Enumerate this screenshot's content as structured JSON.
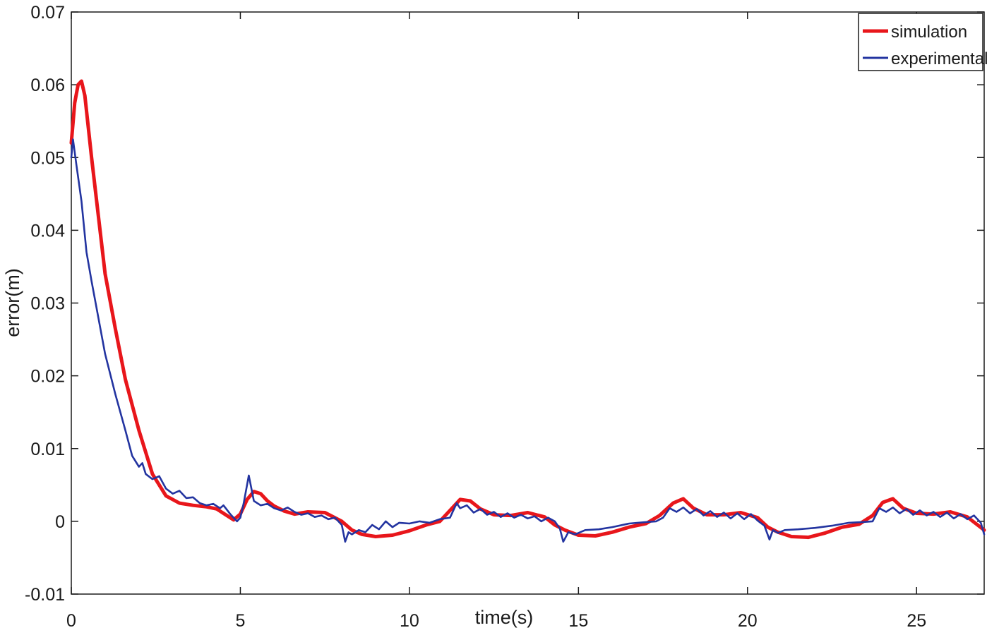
{
  "chart_data": {
    "type": "line",
    "title": "",
    "xlabel": "time(s)",
    "ylabel": "error(m)",
    "xlim": [
      0,
      27
    ],
    "ylim": [
      -0.01,
      0.07
    ],
    "x_ticks": [
      0,
      5,
      10,
      15,
      20,
      25
    ],
    "x_tick_labels": [
      "0",
      "5",
      "10",
      "15",
      "20",
      "25"
    ],
    "y_ticks": [
      -0.01,
      0,
      0.01,
      0.02,
      0.03,
      0.04,
      0.05,
      0.06,
      0.07
    ],
    "y_tick_labels": [
      "-0.01",
      "0",
      "0.01",
      "0.02",
      "0.03",
      "0.04",
      "0.05",
      "0.06",
      "0.07"
    ],
    "grid": false,
    "legend_position": "top-right",
    "series": [
      {
        "name": "simulation",
        "color": "#e8161b",
        "x": [
          0,
          0.1,
          0.2,
          0.3,
          0.4,
          0.6,
          0.8,
          1.0,
          1.3,
          1.6,
          2.0,
          2.4,
          2.8,
          3.2,
          3.6,
          4.0,
          4.3,
          4.6,
          4.8,
          5.0,
          5.2,
          5.4,
          5.6,
          5.8,
          6.0,
          6.3,
          6.6,
          7.0,
          7.5,
          8.0,
          8.3,
          8.6,
          9.0,
          9.5,
          10.0,
          10.5,
          10.9,
          11.2,
          11.5,
          11.8,
          12.1,
          12.5,
          13.0,
          13.5,
          14.0,
          14.3,
          14.6,
          15.0,
          15.5,
          16.0,
          16.5,
          17.0,
          17.4,
          17.8,
          18.1,
          18.4,
          18.8,
          19.3,
          19.8,
          20.3,
          20.6,
          20.9,
          21.3,
          21.8,
          22.3,
          22.8,
          23.3,
          23.7,
          24.0,
          24.3,
          24.6,
          25.0,
          25.5,
          26.0,
          26.5,
          27.0
        ],
        "values": [
          0.052,
          0.0575,
          0.06,
          0.0605,
          0.0585,
          0.05,
          0.042,
          0.034,
          0.0265,
          0.0195,
          0.0125,
          0.0065,
          0.0035,
          0.0025,
          0.0022,
          0.002,
          0.0017,
          0.0008,
          0.0002,
          0.001,
          0.003,
          0.0041,
          0.0038,
          0.0028,
          0.0021,
          0.0014,
          0.001,
          0.0013,
          0.0012,
          0.0,
          -0.0012,
          -0.0018,
          -0.0021,
          -0.0019,
          -0.0013,
          -0.0005,
          0.0,
          0.0015,
          0.003,
          0.0028,
          0.0017,
          0.0009,
          0.0008,
          0.0012,
          0.0006,
          -0.0005,
          -0.0012,
          -0.0019,
          -0.002,
          -0.0015,
          -0.0008,
          -0.0003,
          0.0008,
          0.0025,
          0.0031,
          0.0018,
          0.0009,
          0.0009,
          0.0012,
          0.0005,
          -0.0008,
          -0.0015,
          -0.0021,
          -0.0022,
          -0.0016,
          -0.0008,
          -0.0004,
          0.0008,
          0.0026,
          0.0031,
          0.0018,
          0.0011,
          0.001,
          0.0013,
          0.0006,
          -0.0012
        ]
      },
      {
        "name": "experimental",
        "color": "#2334a0",
        "x": [
          0,
          0.05,
          0.15,
          0.3,
          0.45,
          0.6,
          0.8,
          1.0,
          1.3,
          1.6,
          1.8,
          2.0,
          2.1,
          2.2,
          2.4,
          2.6,
          2.8,
          3.0,
          3.2,
          3.4,
          3.6,
          3.8,
          4.0,
          4.2,
          4.4,
          4.5,
          4.7,
          4.9,
          5.0,
          5.1,
          5.25,
          5.4,
          5.6,
          5.8,
          6.0,
          6.2,
          6.4,
          6.6,
          6.8,
          7.0,
          7.2,
          7.4,
          7.6,
          7.8,
          8.0,
          8.1,
          8.2,
          8.3,
          8.5,
          8.7,
          8.9,
          9.1,
          9.3,
          9.5,
          9.7,
          10.0,
          10.3,
          10.6,
          10.9,
          11.2,
          11.4,
          11.5,
          11.7,
          11.9,
          12.1,
          12.3,
          12.5,
          12.7,
          12.9,
          13.1,
          13.3,
          13.5,
          13.7,
          13.9,
          14.1,
          14.3,
          14.45,
          14.55,
          14.7,
          14.9,
          15.2,
          15.6,
          16.0,
          16.5,
          17.0,
          17.3,
          17.5,
          17.7,
          17.9,
          18.1,
          18.3,
          18.5,
          18.7,
          18.9,
          19.1,
          19.3,
          19.5,
          19.7,
          19.9,
          20.1,
          20.3,
          20.5,
          20.65,
          20.75,
          20.9,
          21.1,
          21.5,
          22.0,
          22.5,
          23.0,
          23.4,
          23.7,
          23.9,
          24.1,
          24.3,
          24.5,
          24.7,
          24.9,
          25.1,
          25.3,
          25.5,
          25.7,
          25.9,
          26.1,
          26.3,
          26.5,
          26.7,
          26.9,
          27.0
        ],
        "values": [
          0.05,
          0.0525,
          0.049,
          0.044,
          0.037,
          0.033,
          0.028,
          0.023,
          0.0175,
          0.0125,
          0.009,
          0.0075,
          0.008,
          0.0065,
          0.0058,
          0.0062,
          0.0045,
          0.0038,
          0.0042,
          0.0032,
          0.0033,
          0.0025,
          0.0022,
          0.0024,
          0.0018,
          0.0022,
          0.001,
          0.0,
          0.0005,
          0.0025,
          0.0063,
          0.0028,
          0.0022,
          0.0024,
          0.0018,
          0.0015,
          0.0019,
          0.0013,
          0.0009,
          0.0011,
          0.0006,
          0.0008,
          0.0003,
          0.0005,
          -0.0005,
          -0.0028,
          -0.0015,
          -0.0018,
          -0.0012,
          -0.0015,
          -0.0005,
          -0.0011,
          0.0,
          -0.0008,
          -0.0002,
          -0.0003,
          0.0,
          -0.0002,
          0.0003,
          0.0005,
          0.0025,
          0.0018,
          0.0022,
          0.0012,
          0.0017,
          0.0009,
          0.0013,
          0.0006,
          0.0011,
          0.0005,
          0.0009,
          0.0004,
          0.0007,
          0.0,
          0.0005,
          0.0,
          -0.001,
          -0.0028,
          -0.0015,
          -0.0018,
          -0.0012,
          -0.0011,
          -0.0008,
          -0.0003,
          -0.0001,
          0.0,
          0.0005,
          0.0018,
          0.0013,
          0.0019,
          0.0011,
          0.0017,
          0.0008,
          0.0014,
          0.0006,
          0.0012,
          0.0004,
          0.0011,
          0.0003,
          0.001,
          0.0001,
          -0.0006,
          -0.0025,
          -0.0012,
          -0.0016,
          -0.0012,
          -0.0011,
          -0.0009,
          -0.0006,
          -0.0002,
          -0.0001,
          0.0,
          0.0018,
          0.0013,
          0.0019,
          0.0011,
          0.0017,
          0.0009,
          0.0015,
          0.0008,
          0.0013,
          0.0006,
          0.0012,
          0.0004,
          0.001,
          0.0003,
          0.0008,
          -0.0002,
          -0.0018
        ]
      }
    ]
  }
}
